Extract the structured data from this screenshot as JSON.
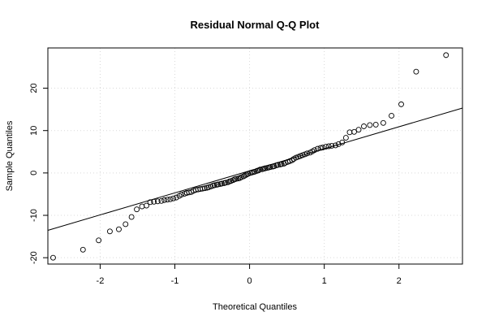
{
  "chart_data": {
    "type": "scatter",
    "title": "Residual Normal Q-Q Plot",
    "xlabel": "Theoretical Quantiles",
    "ylabel": "Sample Quantiles",
    "xlim": [
      -2.7,
      2.85
    ],
    "ylim": [
      -21.5,
      29.5
    ],
    "xticks": [
      -2,
      -1,
      0,
      1,
      2
    ],
    "yticks": [
      -20,
      -10,
      0,
      10,
      20
    ],
    "grid": true,
    "series": [
      {
        "points": [
          [
            -2.63,
            -20.0
          ],
          [
            -2.23,
            -18.1
          ],
          [
            -2.02,
            -15.9
          ],
          [
            -1.87,
            -13.8
          ],
          [
            -1.75,
            -13.3
          ],
          [
            -1.66,
            -12.1
          ],
          [
            -1.58,
            -10.4
          ],
          [
            -1.51,
            -8.6
          ],
          [
            -1.44,
            -7.9
          ],
          [
            -1.38,
            -7.7
          ],
          [
            -1.33,
            -6.9
          ],
          [
            -1.28,
            -6.8
          ],
          [
            -1.23,
            -6.7
          ],
          [
            -1.18,
            -6.6
          ],
          [
            -1.14,
            -6.4
          ],
          [
            -1.1,
            -6.3
          ],
          [
            -1.06,
            -6.2
          ],
          [
            -1.02,
            -6.0
          ],
          [
            -0.98,
            -5.8
          ],
          [
            -0.94,
            -5.4
          ],
          [
            -0.91,
            -5.1
          ],
          [
            -0.87,
            -4.9
          ],
          [
            -0.84,
            -4.7
          ],
          [
            -0.81,
            -4.6
          ],
          [
            -0.78,
            -4.5
          ],
          [
            -0.75,
            -4.2
          ],
          [
            -0.72,
            -4.0
          ],
          [
            -0.69,
            -3.9
          ],
          [
            -0.66,
            -3.8
          ],
          [
            -0.63,
            -3.7
          ],
          [
            -0.6,
            -3.6
          ],
          [
            -0.57,
            -3.5
          ],
          [
            -0.55,
            -3.4
          ],
          [
            -0.52,
            -3.2
          ],
          [
            -0.49,
            -3.0
          ],
          [
            -0.47,
            -2.9
          ],
          [
            -0.44,
            -2.8
          ],
          [
            -0.42,
            -2.7
          ],
          [
            -0.39,
            -2.6
          ],
          [
            -0.37,
            -2.5
          ],
          [
            -0.34,
            -2.4
          ],
          [
            -0.32,
            -2.3
          ],
          [
            -0.29,
            -2.2
          ],
          [
            -0.27,
            -2.0
          ],
          [
            -0.25,
            -1.9
          ],
          [
            -0.22,
            -1.7
          ],
          [
            -0.2,
            -1.5
          ],
          [
            -0.18,
            -1.4
          ],
          [
            -0.15,
            -1.3
          ],
          [
            -0.13,
            -1.2
          ],
          [
            -0.11,
            -1.0
          ],
          [
            -0.08,
            -0.8
          ],
          [
            -0.06,
            -0.6
          ],
          [
            -0.04,
            -0.4
          ],
          [
            -0.02,
            -0.2
          ],
          [
            0.01,
            0.0
          ],
          [
            0.03,
            0.1
          ],
          [
            0.05,
            0.2
          ],
          [
            0.07,
            0.3
          ],
          [
            0.1,
            0.5
          ],
          [
            0.12,
            0.6
          ],
          [
            0.14,
            0.8
          ],
          [
            0.17,
            0.9
          ],
          [
            0.19,
            1.0
          ],
          [
            0.21,
            1.1
          ],
          [
            0.24,
            1.2
          ],
          [
            0.26,
            1.3
          ],
          [
            0.28,
            1.4
          ],
          [
            0.31,
            1.5
          ],
          [
            0.33,
            1.6
          ],
          [
            0.36,
            1.8
          ],
          [
            0.38,
            1.9
          ],
          [
            0.41,
            2.0
          ],
          [
            0.43,
            2.1
          ],
          [
            0.46,
            2.2
          ],
          [
            0.48,
            2.4
          ],
          [
            0.51,
            2.6
          ],
          [
            0.54,
            2.8
          ],
          [
            0.57,
            3.0
          ],
          [
            0.59,
            3.3
          ],
          [
            0.62,
            3.6
          ],
          [
            0.65,
            3.8
          ],
          [
            0.68,
            4.0
          ],
          [
            0.71,
            4.2
          ],
          [
            0.74,
            4.4
          ],
          [
            0.77,
            4.6
          ],
          [
            0.81,
            4.8
          ],
          [
            0.84,
            5.1
          ],
          [
            0.87,
            5.4
          ],
          [
            0.91,
            5.7
          ],
          [
            0.95,
            5.9
          ],
          [
            0.98,
            6.0
          ],
          [
            1.02,
            6.2
          ],
          [
            1.06,
            6.3
          ],
          [
            1.1,
            6.4
          ],
          [
            1.15,
            6.5
          ],
          [
            1.19,
            6.8
          ],
          [
            1.24,
            7.2
          ],
          [
            1.29,
            8.3
          ],
          [
            1.34,
            9.6
          ],
          [
            1.4,
            9.7
          ],
          [
            1.46,
            10.2
          ],
          [
            1.53,
            11.0
          ],
          [
            1.61,
            11.3
          ],
          [
            1.69,
            11.4
          ],
          [
            1.79,
            11.8
          ],
          [
            1.9,
            13.5
          ],
          [
            2.03,
            16.2
          ],
          [
            2.23,
            23.9
          ],
          [
            2.63,
            27.8
          ]
        ]
      }
    ],
    "reference_line": {
      "intercept": 0.5,
      "slope": 5.2
    }
  }
}
